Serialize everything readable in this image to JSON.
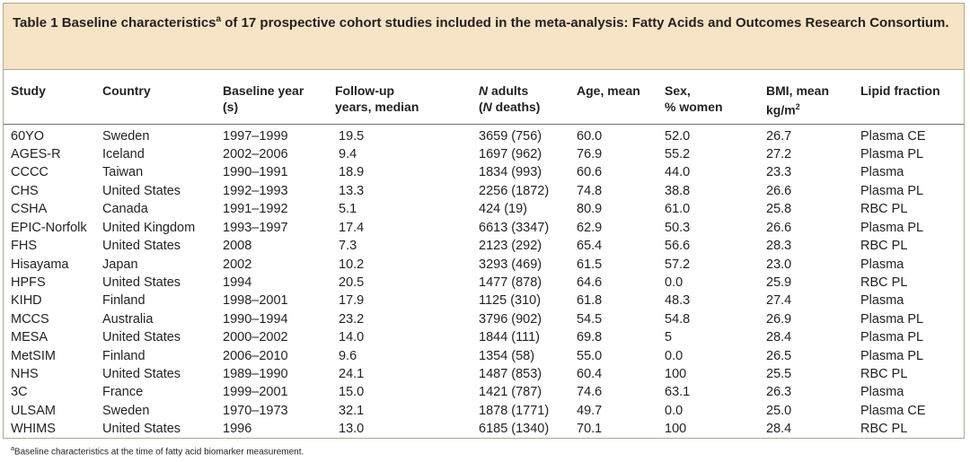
{
  "caption": {
    "prefix": "Table 1 Baseline characteristics",
    "sup": "a",
    "rest": " of 17 prospective cohort studies included in the meta-analysis: Fatty Acids and Outcomes Research Consortium."
  },
  "headers": {
    "study": "Study",
    "country": "Country",
    "baseline_year_l1": "Baseline year",
    "baseline_year_l2": "(s)",
    "followup_l1": "Follow-up",
    "followup_l2": "years, median",
    "n_adults_italic": "N",
    "n_adults_rest": " adults",
    "n_deaths_open": "(",
    "n_deaths_italic": "N",
    "n_deaths_rest": " deaths)",
    "age": "Age, mean",
    "sex_l1": "Sex,",
    "sex_l2": "% women",
    "bmi_l1": "BMI, mean",
    "bmi_l2": "kg/m",
    "bmi_sup": "2",
    "lipid": "Lipid fraction"
  },
  "rows": [
    {
      "study": "60YO",
      "country": "Sweden",
      "year": "1997–1999",
      "followup": "19.5",
      "n": "3659 (756)",
      "age": "60.0",
      "sex": "52.0",
      "bmi": "26.7",
      "lipid": "Plasma CE"
    },
    {
      "study": "AGES-R",
      "country": "Iceland",
      "year": "2002–2006",
      "followup": "9.4",
      "n": "1697 (962)",
      "age": "76.9",
      "sex": "55.2",
      "bmi": "27.2",
      "lipid": "Plasma PL"
    },
    {
      "study": "CCCC",
      "country": "Taiwan",
      "year": "1990–1991",
      "followup": "18.9",
      "n": "1834 (993)",
      "age": "60.6",
      "sex": "44.0",
      "bmi": "23.3",
      "lipid": "Plasma"
    },
    {
      "study": "CHS",
      "country": "United States",
      "year": "1992–1993",
      "followup": "13.3",
      "n": "2256 (1872)",
      "age": "74.8",
      "sex": "38.8",
      "bmi": "26.6",
      "lipid": "Plasma PL"
    },
    {
      "study": "CSHA",
      "country": "Canada",
      "year": "1991–1992",
      "followup": "5.1",
      "n": "424 (19)",
      "age": "80.9",
      "sex": "61.0",
      "bmi": "25.8",
      "lipid": "RBC PL"
    },
    {
      "study": "EPIC-Norfolk",
      "country": "United Kingdom",
      "year": "1993–1997",
      "followup": "17.4",
      "n": "6613 (3347)",
      "age": "62.9",
      "sex": "50.3",
      "bmi": "26.6",
      "lipid": "Plasma PL"
    },
    {
      "study": "FHS",
      "country": "United States",
      "year": "2008",
      "followup": "7.3",
      "n": "2123 (292)",
      "age": "65.4",
      "sex": "56.6",
      "bmi": "28.3",
      "lipid": "RBC PL"
    },
    {
      "study": "Hisayama",
      "country": "Japan",
      "year": "2002",
      "followup": "10.2",
      "n": "3293 (469)",
      "age": "61.5",
      "sex": "57.2",
      "bmi": "23.0",
      "lipid": "Plasma"
    },
    {
      "study": "HPFS",
      "country": "United States",
      "year": "1994",
      "followup": "20.5",
      "n": "1477 (878)",
      "age": "64.6",
      "sex": "0.0",
      "bmi": "25.9",
      "lipid": "RBC PL"
    },
    {
      "study": "KIHD",
      "country": "Finland",
      "year": "1998–2001",
      "followup": "17.9",
      "n": "1125 (310)",
      "age": "61.8",
      "sex": "48.3",
      "bmi": "27.4",
      "lipid": "Plasma"
    },
    {
      "study": "MCCS",
      "country": "Australia",
      "year": "1990–1994",
      "followup": "23.2",
      "n": "3796 (902)",
      "age": "54.5",
      "sex": "54.8",
      "bmi": "26.9",
      "lipid": "Plasma PL"
    },
    {
      "study": "MESA",
      "country": "United States",
      "year": "2000–2002",
      "followup": "14.0",
      "n": "1844 (111)",
      "age": "69.8",
      "sex": "5",
      "bmi": "28.4",
      "lipid": "Plasma PL"
    },
    {
      "study": "MetSIM",
      "country": "Finland",
      "year": "2006–2010",
      "followup": "9.6",
      "n": "1354 (58)",
      "age": "55.0",
      "sex": "0.0",
      "bmi": "26.5",
      "lipid": "Plasma PL"
    },
    {
      "study": "NHS",
      "country": "United States",
      "year": "1989–1990",
      "followup": "24.1",
      "n": "1487 (853)",
      "age": "60.4",
      "sex": "100",
      "bmi": "25.5",
      "lipid": "RBC PL"
    },
    {
      "study": "3C",
      "country": "France",
      "year": "1999–2001",
      "followup": "15.0",
      "n": "1421 (787)",
      "age": "74.6",
      "sex": "63.1",
      "bmi": "26.3",
      "lipid": "Plasma"
    },
    {
      "study": "ULSAM",
      "country": "Sweden",
      "year": "1970–1973",
      "followup": "32.1",
      "n": "1878 (1771)",
      "age": "49.7",
      "sex": "0.0",
      "bmi": "25.0",
      "lipid": "Plasma CE"
    },
    {
      "study": "WHIMS",
      "country": "United States",
      "year": "1996",
      "followup": "13.0",
      "n": "6185 (1340)",
      "age": "70.1",
      "sex": "100",
      "bmi": "28.4",
      "lipid": "RBC PL"
    }
  ],
  "footnote": {
    "sup": "a",
    "text": "Baseline characteristics at the time of fatty acid biomarker measurement."
  },
  "colors": {
    "caption_bg": "#f7e4c6",
    "border": "#b4a48d",
    "text": "#231f20"
  }
}
